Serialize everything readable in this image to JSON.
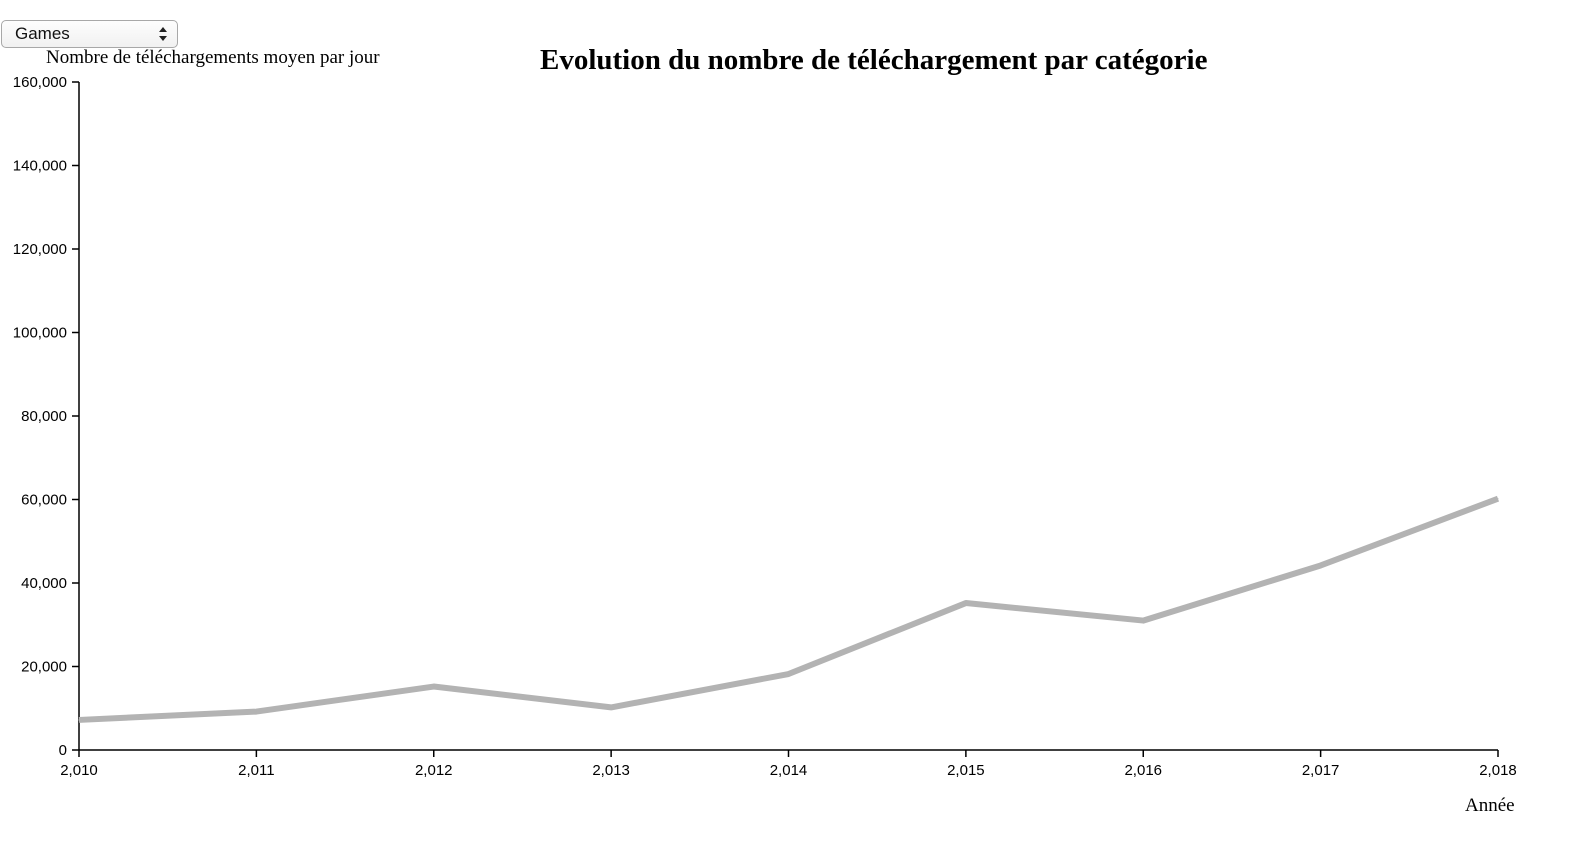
{
  "selector": {
    "selected": "Games",
    "icon": "up-down-arrows-icon"
  },
  "chart_data": {
    "type": "line",
    "title": "Evolution du nombre de téléchargement par catégorie",
    "ylabel": "Nombre de téléchargements moyen par jour",
    "xlabel": "Année",
    "x": [
      2010,
      2011,
      2012,
      2013,
      2014,
      2015,
      2016,
      2017,
      2018
    ],
    "x_tick_labels": [
      "2,010",
      "2,011",
      "2,012",
      "2,013",
      "2,014",
      "2,015",
      "2,016",
      "2,017",
      "2,018"
    ],
    "y_tick_labels": [
      "0",
      "20,000",
      "40,000",
      "60,000",
      "80,000",
      "100,000",
      "120,000",
      "140,000",
      "160,000"
    ],
    "y_ticks": [
      0,
      20000,
      40000,
      60000,
      80000,
      100000,
      120000,
      140000,
      160000
    ],
    "xlim": [
      2010,
      2018
    ],
    "ylim": [
      0,
      160000
    ],
    "series": [
      {
        "values": [
          7200,
          9200,
          15200,
          10200,
          18200,
          35200,
          31000,
          44200,
          60200
        ],
        "color": "#b3b3b3"
      }
    ],
    "grid": false
  }
}
